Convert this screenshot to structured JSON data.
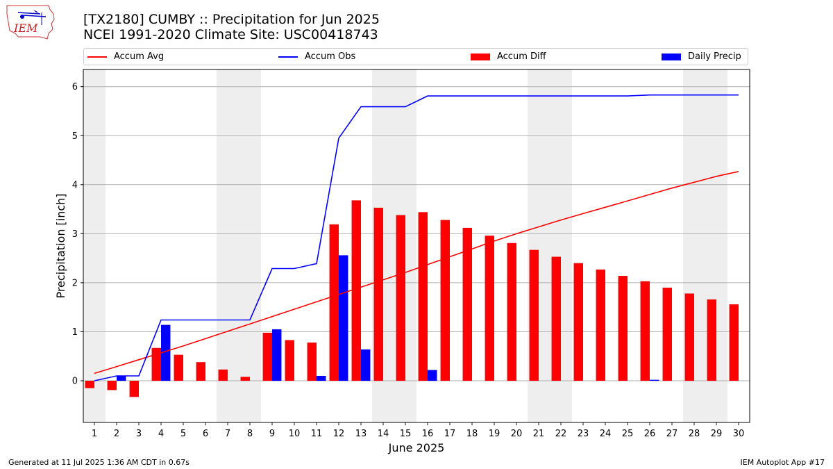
{
  "header": {
    "title_line1": "[TX2180] CUMBY :: Precipitation for Jun 2025",
    "title_line2": "NCEI 1991-2020 Climate Site: USC00418743",
    "logo_text": "IEM"
  },
  "legend": {
    "accum_avg": "Accum Avg",
    "accum_obs": "Accum Obs",
    "accum_diff": "Accum Diff",
    "daily_precip": "Daily Precip"
  },
  "colors": {
    "accum_avg": "#ff0000",
    "accum_obs": "#0000ff",
    "accum_diff": "#ff0000",
    "daily_precip": "#0000ff",
    "weekend_shade": "#eeeeee",
    "grid": "#b0b0b0"
  },
  "footer": {
    "generated": "Generated at 11 Jul 2025 1:36 AM CDT in 0.67s",
    "app": "IEM Autoplot App #17"
  },
  "chart_data": {
    "type": "bar",
    "xlabel": "June 2025",
    "ylabel": "Precipitation [inch]",
    "xlim": [
      0.5,
      30.5
    ],
    "ylim": [
      -0.85,
      6.35
    ],
    "yticks": [
      0,
      1,
      2,
      3,
      4,
      5,
      6
    ],
    "grid": "y",
    "legend_position": "top",
    "x": [
      1,
      2,
      3,
      4,
      5,
      6,
      7,
      8,
      9,
      10,
      11,
      12,
      13,
      14,
      15,
      16,
      17,
      18,
      19,
      20,
      21,
      22,
      23,
      24,
      25,
      26,
      27,
      28,
      29,
      30
    ],
    "weekend_days": [
      1,
      7,
      8,
      14,
      15,
      21,
      22,
      28,
      29
    ],
    "series": [
      {
        "name": "Accum Avg",
        "kind": "line",
        "values": [
          0.15,
          0.29,
          0.43,
          0.57,
          0.71,
          0.86,
          1.01,
          1.16,
          1.31,
          1.46,
          1.61,
          1.76,
          1.91,
          2.06,
          2.21,
          2.37,
          2.53,
          2.69,
          2.85,
          3.0,
          3.14,
          3.28,
          3.41,
          3.54,
          3.67,
          3.8,
          3.93,
          4.05,
          4.17,
          4.27
        ]
      },
      {
        "name": "Accum Obs",
        "kind": "line",
        "values": [
          0.0,
          0.1,
          0.1,
          1.24,
          1.24,
          1.24,
          1.24,
          1.24,
          2.29,
          2.29,
          2.39,
          4.95,
          5.59,
          5.59,
          5.59,
          5.81,
          5.81,
          5.81,
          5.81,
          5.81,
          5.81,
          5.81,
          5.81,
          5.81,
          5.81,
          5.83,
          5.83,
          5.83,
          5.83,
          5.83
        ]
      },
      {
        "name": "Accum Diff",
        "kind": "bar",
        "values": [
          -0.15,
          -0.19,
          -0.33,
          0.67,
          0.53,
          0.38,
          0.23,
          0.08,
          0.98,
          0.83,
          0.78,
          3.19,
          3.68,
          3.53,
          3.38,
          3.44,
          3.28,
          3.12,
          2.96,
          2.81,
          2.67,
          2.53,
          2.4,
          2.27,
          2.14,
          2.03,
          1.9,
          1.78,
          1.66,
          1.56
        ]
      },
      {
        "name": "Daily Precip",
        "kind": "bar",
        "values": [
          0.0,
          0.1,
          0.0,
          1.14,
          0.0,
          0.0,
          0.0,
          0.0,
          1.05,
          0.0,
          0.1,
          2.56,
          0.64,
          0.0,
          0.0,
          0.22,
          0.0,
          0.0,
          0.0,
          0.0,
          0.0,
          0.0,
          0.0,
          0.0,
          0.0,
          0.02,
          0.0,
          0.0,
          0.0,
          0.0
        ]
      }
    ]
  }
}
